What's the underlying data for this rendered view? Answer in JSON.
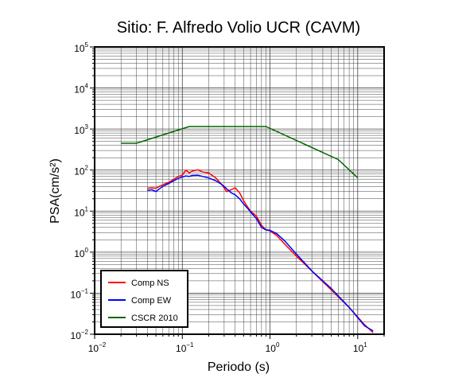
{
  "chart_data": {
    "type": "line",
    "title": "Sitio: F. Alfredo Volio UCR (CAVM)",
    "xlabel": "Periodo (s)",
    "ylabel": "PSA(cm/s²)",
    "xscale": "log",
    "yscale": "log",
    "xlim": [
      0.01,
      20
    ],
    "ylim": [
      0.01,
      100000
    ],
    "x_tick_labels": [
      {
        "value": 0.01,
        "base": "10",
        "exp": "−2"
      },
      {
        "value": 0.1,
        "base": "10",
        "exp": "−1"
      },
      {
        "value": 1,
        "base": "10",
        "exp": "0"
      },
      {
        "value": 10,
        "base": "10",
        "exp": "1"
      }
    ],
    "y_tick_labels": [
      {
        "value": 0.01,
        "base": "10",
        "exp": "−2"
      },
      {
        "value": 0.1,
        "base": "10",
        "exp": "−1"
      },
      {
        "value": 1,
        "base": "10",
        "exp": "0"
      },
      {
        "value": 10,
        "base": "10",
        "exp": "1"
      },
      {
        "value": 100,
        "base": "10",
        "exp": "2"
      },
      {
        "value": 1000,
        "base": "10",
        "exp": "3"
      },
      {
        "value": 10000,
        "base": "10",
        "exp": "4"
      },
      {
        "value": 100000,
        "base": "10",
        "exp": "5"
      }
    ],
    "grid": true,
    "legend_position": "bottom-left",
    "series": [
      {
        "name": "Comp NS",
        "color": "#ff0000",
        "x": [
          0.04,
          0.045,
          0.05,
          0.055,
          0.06,
          0.07,
          0.08,
          0.09,
          0.1,
          0.11,
          0.12,
          0.13,
          0.15,
          0.17,
          0.2,
          0.24,
          0.28,
          0.32,
          0.36,
          0.4,
          0.45,
          0.5,
          0.55,
          0.6,
          0.7,
          0.8,
          0.9,
          1.0,
          1.2,
          1.5,
          2.0,
          3.0,
          5.0,
          8.0,
          12.0,
          15.0
        ],
        "y": [
          36,
          37,
          36,
          40,
          44,
          50,
          60,
          70,
          75,
          100,
          85,
          95,
          102,
          90,
          85,
          65,
          45,
          30,
          33,
          37,
          28,
          18,
          13,
          10,
          7.5,
          4.5,
          3.5,
          3.3,
          2.5,
          1.5,
          0.8,
          0.35,
          0.12,
          0.045,
          0.017,
          0.011
        ]
      },
      {
        "name": "Comp EW",
        "color": "#0000ff",
        "x": [
          0.04,
          0.045,
          0.05,
          0.055,
          0.06,
          0.07,
          0.08,
          0.09,
          0.1,
          0.11,
          0.12,
          0.13,
          0.15,
          0.17,
          0.2,
          0.24,
          0.28,
          0.32,
          0.36,
          0.4,
          0.45,
          0.5,
          0.55,
          0.6,
          0.7,
          0.8,
          0.9,
          1.0,
          1.2,
          1.5,
          2.0,
          3.0,
          5.0,
          8.0,
          12.0,
          15.0
        ],
        "y": [
          32,
          33,
          30,
          35,
          40,
          47,
          55,
          63,
          68,
          72,
          70,
          74,
          75,
          70,
          64,
          55,
          45,
          35,
          28,
          25,
          20,
          15,
          12,
          9.5,
          6.5,
          4.0,
          3.5,
          3.4,
          2.8,
          1.8,
          0.9,
          0.35,
          0.13,
          0.045,
          0.016,
          0.012
        ]
      },
      {
        "name": "CSCR 2010",
        "color": "#006600",
        "x": [
          0.02,
          0.03,
          0.12,
          0.9,
          6.0,
          10.0
        ],
        "y": [
          450,
          450,
          1150,
          1150,
          180,
          65
        ]
      }
    ]
  }
}
